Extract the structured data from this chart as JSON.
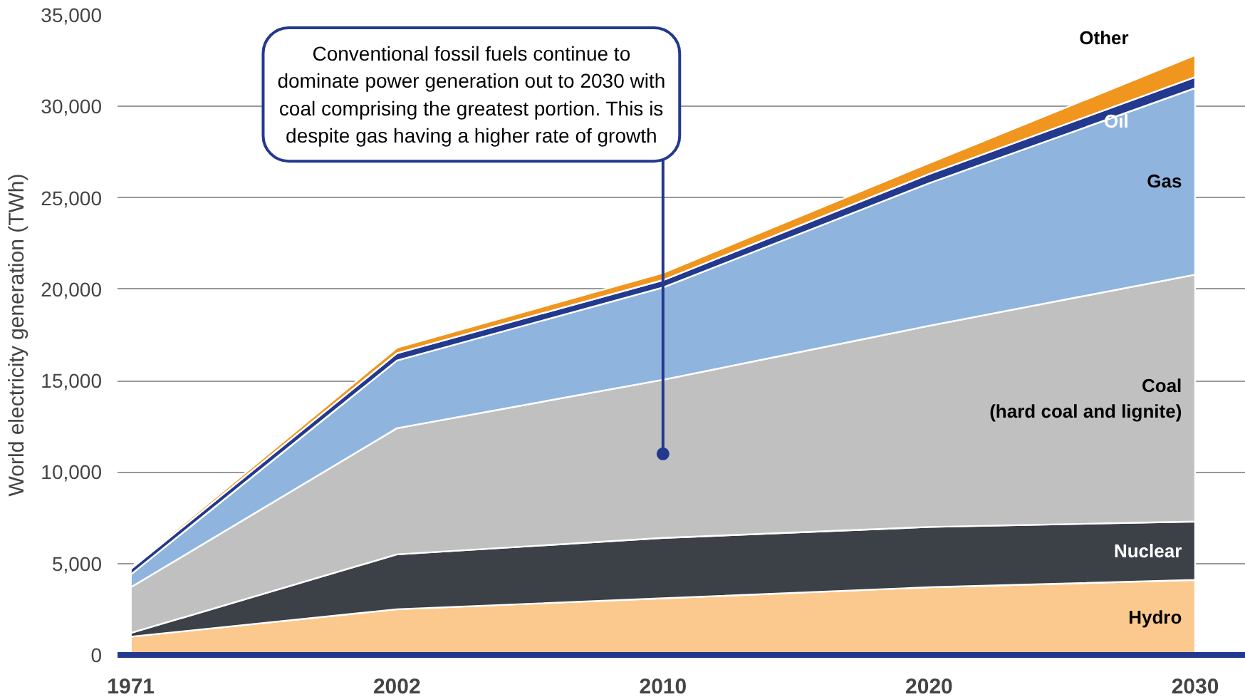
{
  "chart_data": {
    "type": "area",
    "stacked": true,
    "ylabel": "World electricity generation (TWh)",
    "categories": [
      "1971",
      "2002",
      "2010",
      "2020",
      "2030"
    ],
    "series": [
      {
        "name": "Hydro",
        "color": "#fbc98e",
        "values": [
          1000,
          2500,
          3100,
          3700,
          4100
        ]
      },
      {
        "name": "Nuclear",
        "color": "#3c4047",
        "values": [
          200,
          3000,
          3300,
          3300,
          3200
        ]
      },
      {
        "name": "Coal\n(hard coal and lignite)",
        "color": "#c0c0c0",
        "values": [
          2500,
          6900,
          8650,
          11000,
          13500
        ]
      },
      {
        "name": "Gas",
        "color": "#8fb4de",
        "values": [
          700,
          3700,
          5050,
          7800,
          10200
        ]
      },
      {
        "name": "Oil",
        "color": "#23398e",
        "values": [
          300,
          400,
          400,
          500,
          600
        ]
      },
      {
        "name": "Other",
        "color": "#f0951e",
        "values": [
          100,
          300,
          400,
          600,
          1200
        ]
      }
    ],
    "ylim": [
      0,
      35000
    ],
    "yticks": [
      0,
      {
        "value": 5000,
        "label": "5,000"
      },
      {
        "value": 10000,
        "label": "10,000"
      },
      {
        "value": 15000,
        "label": "15,000"
      },
      {
        "value": 20000,
        "label": "20,000"
      },
      {
        "value": 25000,
        "label": "25,000"
      },
      {
        "value": 30000,
        "label": "30,000"
      },
      {
        "value": 35000,
        "label": "35,000"
      }
    ],
    "grid": "y",
    "annotations": [
      {
        "text": "Conventional fossil fuels continue to\ndominate power generation out to 2030 with\ncoal comprising the greatest portion. This is\ndespite gas having a higher rate of growth",
        "x": "2010",
        "y": 11000
      }
    ]
  }
}
